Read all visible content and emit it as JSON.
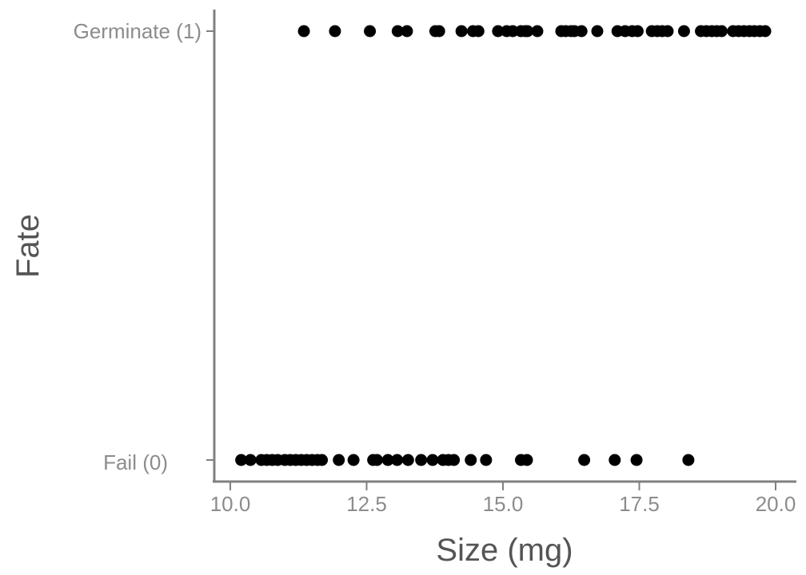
{
  "chart_data": {
    "type": "scatter",
    "title": "",
    "xlabel": "Size (mg)",
    "ylabel": "Fate",
    "xlim": [
      10.0,
      20.0
    ],
    "xticks": [
      10.0,
      12.5,
      15.0,
      17.5,
      20.0
    ],
    "xtick_labels": [
      "10.0",
      "12.5",
      "15.0",
      "17.5",
      "20.0"
    ],
    "yticks": [
      0,
      1
    ],
    "ytick_labels": [
      "Fail (0)",
      "Germinate (1)"
    ],
    "grid": false,
    "legend": "none",
    "point_color": "#000000",
    "axis_color": "#808080",
    "series": [
      {
        "name": "",
        "y": 1,
        "x": [
          11.35,
          11.92,
          12.56,
          13.07,
          13.24,
          13.76,
          13.83,
          14.24,
          14.45,
          14.55,
          14.91,
          15.07,
          15.18,
          15.33,
          15.41,
          15.45,
          15.63,
          16.07,
          16.15,
          16.25,
          16.31,
          16.44,
          16.73,
          17.1,
          17.24,
          17.37,
          17.47,
          17.73,
          17.83,
          17.92,
          18.02,
          18.32,
          18.63,
          18.73,
          18.83,
          18.92,
          19.01,
          19.22,
          19.32,
          19.42,
          19.52,
          19.61,
          19.71,
          19.81
        ]
      },
      {
        "name": "",
        "y": 0,
        "x": [
          10.2,
          10.37,
          10.57,
          10.67,
          10.77,
          10.87,
          11.0,
          11.1,
          11.2,
          11.3,
          11.4,
          11.5,
          11.6,
          11.68,
          11.99,
          12.26,
          12.62,
          12.69,
          12.89,
          13.06,
          13.26,
          13.5,
          13.71,
          13.9,
          14.0,
          14.1,
          14.41,
          14.69,
          15.33,
          15.44,
          16.49,
          17.05,
          17.45,
          18.4
        ]
      }
    ]
  }
}
